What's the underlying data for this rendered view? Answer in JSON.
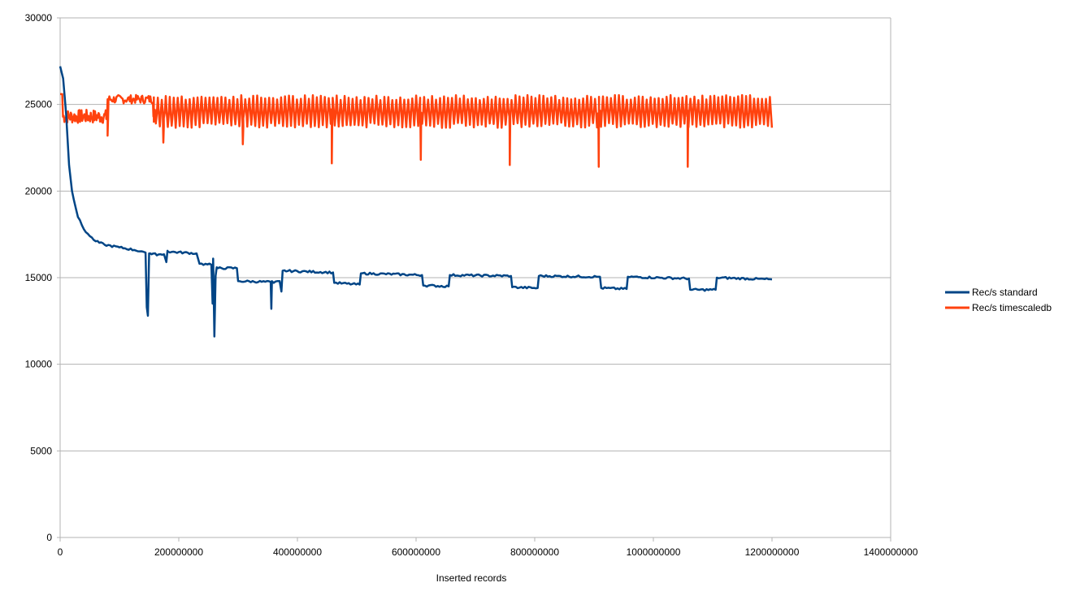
{
  "chart_data": {
    "type": "line",
    "title": "",
    "xlabel": "Inserted records",
    "ylabel": "",
    "xlim": [
      0,
      1400000000
    ],
    "ylim": [
      0,
      30000
    ],
    "x_ticks": [
      0,
      200000000,
      400000000,
      600000000,
      800000000,
      1000000000,
      1200000000,
      1400000000
    ],
    "x_tick_labels": [
      "0",
      "200000000",
      "400000000",
      "600000000",
      "800000000",
      "1000000000",
      "1200000000",
      "1400000000"
    ],
    "y_ticks": [
      0,
      5000,
      10000,
      15000,
      20000,
      25000,
      30000
    ],
    "y_tick_labels": [
      "0",
      "5000",
      "10000",
      "15000",
      "20000",
      "25000",
      "30000"
    ],
    "grid": "horizontal",
    "legend_position": "right",
    "series": [
      {
        "name": "Rec/s standard",
        "color": "#004586",
        "x": [
          0,
          5000000,
          10000000,
          15000000,
          20000000,
          30000000,
          40000000,
          50000000,
          60000000,
          75000000,
          100000000,
          125000000,
          140000000,
          144000000,
          146000000,
          148000000,
          150000000,
          152000000,
          154000000,
          175000000,
          179000000,
          181000000,
          182000000,
          230000000,
          235000000,
          255000000,
          257000000,
          258000000,
          260000000,
          262000000,
          264000000,
          266000000,
          298000000,
          300000000,
          355000000,
          356000000,
          357000000,
          360000000,
          370000000,
          373000000,
          375000000,
          460000000,
          462000000,
          505000000,
          507000000,
          610000000,
          612000000,
          655000000,
          657000000,
          760000000,
          762000000,
          805000000,
          807000000,
          910000000,
          912000000,
          955000000,
          957000000,
          1060000000,
          1062000000,
          1105000000,
          1107000000,
          1200000000
        ],
        "values": [
          27200,
          26500,
          24500,
          21500,
          20000,
          18500,
          17800,
          17400,
          17100,
          16900,
          16750,
          16600,
          16500,
          16450,
          13300,
          12800,
          16400,
          16400,
          16350,
          16350,
          15900,
          16550,
          16500,
          16400,
          15800,
          15750,
          13500,
          16100,
          11600,
          15100,
          15600,
          15550,
          15550,
          14800,
          14750,
          13200,
          14800,
          14700,
          14800,
          14200,
          15400,
          15300,
          14700,
          14600,
          15250,
          15150,
          14550,
          14500,
          15150,
          15100,
          14450,
          14400,
          15100,
          15050,
          14400,
          14350,
          15050,
          14950,
          14300,
          14300,
          15000,
          14900
        ]
      },
      {
        "name": "Rec/s timescaledb",
        "color": "#ff420e",
        "pattern": {
          "cycle_records": 6700000,
          "high": 25400,
          "low": 23800,
          "start_plateau": 24300,
          "plateau_end": 80000000,
          "upper_band": 25300
        },
        "dips": [
          {
            "x": 80000000,
            "value": 23200
          },
          {
            "x": 158000000,
            "value": 24000
          },
          {
            "x": 174000000,
            "value": 22800
          },
          {
            "x": 308000000,
            "value": 22700
          },
          {
            "x": 458000000,
            "value": 21600
          },
          {
            "x": 608000000,
            "value": 21800
          },
          {
            "x": 758000000,
            "value": 21500
          },
          {
            "x": 908000000,
            "value": 21400
          },
          {
            "x": 1058000000,
            "value": 21400
          }
        ],
        "x_end": 1200000000
      }
    ]
  }
}
